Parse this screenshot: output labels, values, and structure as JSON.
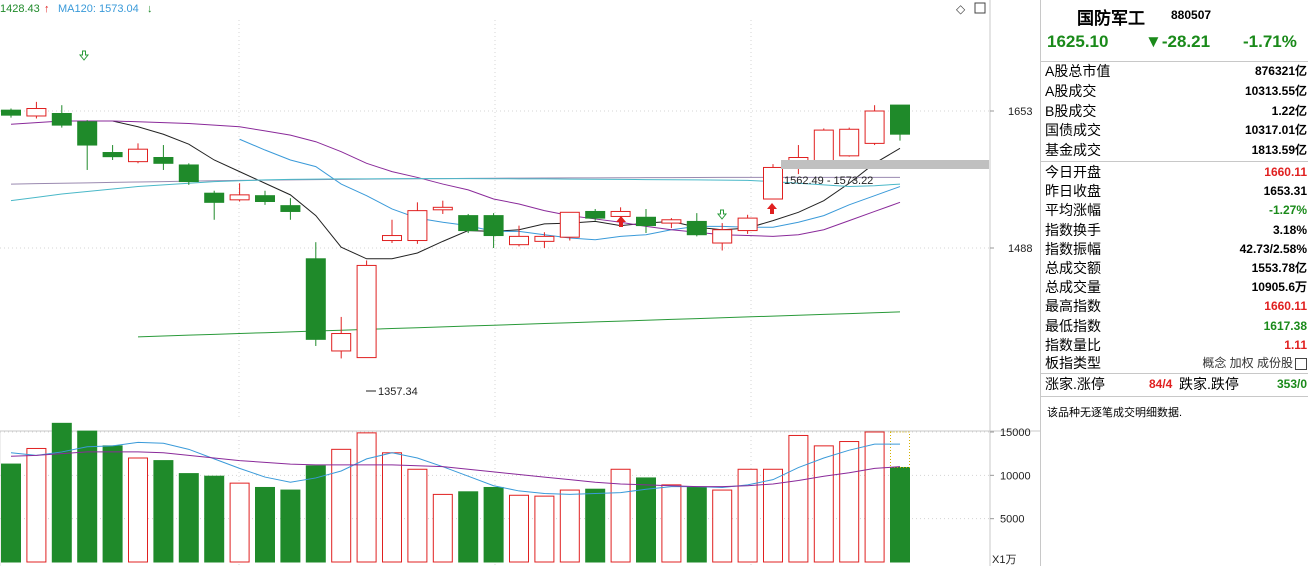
{
  "top_legend": {
    "ma_label_1": "1428.43",
    "ma_label_2": "MA120: 1573.04",
    "up_arrow_color": "#e02020",
    "ma2_color": "#3a9ad9"
  },
  "toolbar": {
    "diamond_icon": "diamond-icon",
    "window_icon": "window-icon"
  },
  "annotations": {
    "low_label": "1357.34",
    "gap_label": "1562.49 - 1573.22"
  },
  "volume_unit": "X1万",
  "header": {
    "name": "国防军工",
    "code": "880507",
    "price": "1625.10",
    "change": "▼-28.21",
    "pct": "-1.71%"
  },
  "stats": [
    {
      "key": "A股总市值",
      "value": "876321亿",
      "color": "blk"
    },
    {
      "key": "A股成交",
      "value": "10313.55亿",
      "color": "blk"
    },
    {
      "key": "B股成交",
      "value": "1.22亿",
      "color": "blk"
    },
    {
      "key": "国债成交",
      "value": "10317.01亿",
      "color": "blk"
    },
    {
      "key": "基金成交",
      "value": "1813.59亿",
      "color": "blk"
    },
    {
      "key": "今日开盘",
      "value": "1660.11",
      "color": "red"
    },
    {
      "key": "昨日收盘",
      "value": "1653.31",
      "color": "blk"
    },
    {
      "key": "平均涨幅",
      "value": "-1.27%",
      "color": "green"
    },
    {
      "key": "指数换手",
      "value": "3.18%",
      "color": "blk"
    },
    {
      "key": "指数振幅",
      "value": "42.73/2.58%",
      "color": "blk"
    },
    {
      "key": "总成交额",
      "value": "1553.78亿",
      "color": "blk"
    },
    {
      "key": "总成交量",
      "value": "10905.6万",
      "color": "blk"
    },
    {
      "key": "最高指数",
      "value": "1660.11",
      "color": "red"
    },
    {
      "key": "最低指数",
      "value": "1617.38",
      "color": "green"
    },
    {
      "key": "指数量比",
      "value": "1.11",
      "color": "red"
    }
  ],
  "type_row": {
    "key": "板指类型",
    "options": "概念 加权 成份股",
    "icon": "list-icon"
  },
  "ratio_row": {
    "key1": "涨家.涨停",
    "val1": "84/4",
    "key2": "跌家.跌停",
    "val2": "353/0"
  },
  "note": "该品种无逐笔成交明细数据.",
  "chart_data": {
    "type": "candlestick",
    "price_ticks": [
      1653,
      1488
    ],
    "volume_ticks": [
      15000,
      10000,
      5000
    ],
    "colors": {
      "up": "#e02020",
      "down": "#1f8a2a"
    },
    "candles": [
      {
        "o": 1654,
        "c": 1648,
        "h": 1656,
        "l": 1645,
        "v": 11300
      },
      {
        "o": 1647,
        "c": 1656,
        "h": 1664,
        "l": 1644,
        "v": 13100
      },
      {
        "o": 1650,
        "c": 1636,
        "h": 1660,
        "l": 1633,
        "v": 16000
      },
      {
        "o": 1640,
        "c": 1612,
        "h": 1642,
        "l": 1582,
        "v": 15100
      },
      {
        "o": 1603,
        "c": 1598,
        "h": 1612,
        "l": 1594,
        "v": 13400
      },
      {
        "o": 1592,
        "c": 1607,
        "h": 1614,
        "l": 1590,
        "v": 12000
      },
      {
        "o": 1597,
        "c": 1590,
        "h": 1612,
        "l": 1582,
        "v": 11700
      },
      {
        "o": 1588,
        "c": 1568,
        "h": 1590,
        "l": 1564,
        "v": 10200
      },
      {
        "o": 1554,
        "c": 1543,
        "h": 1557,
        "l": 1522,
        "v": 9900
      },
      {
        "o": 1546,
        "c": 1552,
        "h": 1566,
        "l": 1544,
        "v": 9100
      },
      {
        "o": 1551,
        "c": 1544,
        "h": 1557,
        "l": 1540,
        "v": 8600
      },
      {
        "o": 1539,
        "c": 1532,
        "h": 1548,
        "l": 1522,
        "v": 8300
      },
      {
        "o": 1475,
        "c": 1378,
        "h": 1495,
        "l": 1370,
        "v": 11100
      },
      {
        "o": 1364,
        "c": 1385,
        "h": 1405,
        "l": 1355,
        "v": 13000
      },
      {
        "o": 1356,
        "c": 1467,
        "h": 1473,
        "l": 1357.34,
        "v": 14900
      },
      {
        "o": 1497,
        "c": 1503,
        "h": 1522,
        "l": 1494,
        "v": 12600
      },
      {
        "o": 1497,
        "c": 1533,
        "h": 1543,
        "l": 1493,
        "v": 10700
      },
      {
        "o": 1534,
        "c": 1537,
        "h": 1545,
        "l": 1529,
        "v": 7800
      },
      {
        "o": 1527,
        "c": 1509,
        "h": 1529,
        "l": 1506,
        "v": 8100
      },
      {
        "o": 1527,
        "c": 1503,
        "h": 1530,
        "l": 1488,
        "v": 8600
      },
      {
        "o": 1492,
        "c": 1502,
        "h": 1515,
        "l": 1490,
        "v": 7700
      },
      {
        "o": 1496,
        "c": 1502,
        "h": 1507,
        "l": 1488,
        "v": 7600
      },
      {
        "o": 1501,
        "c": 1531,
        "h": 1531,
        "l": 1497,
        "v": 8300
      },
      {
        "o": 1532,
        "c": 1524,
        "h": 1535,
        "l": 1521,
        "v": 8400
      },
      {
        "o": 1526,
        "c": 1532,
        "h": 1537,
        "l": 1521,
        "v": 10700
      },
      {
        "o": 1525,
        "c": 1515,
        "h": 1535,
        "l": 1506,
        "v": 9700
      },
      {
        "o": 1518,
        "c": 1522,
        "h": 1524,
        "l": 1512,
        "v": 8900
      },
      {
        "o": 1520,
        "c": 1504,
        "h": 1530,
        "l": 1502,
        "v": 8600
      },
      {
        "o": 1494,
        "c": 1510,
        "h": 1518,
        "l": 1485,
        "v": 8300
      },
      {
        "o": 1509,
        "c": 1524,
        "h": 1528,
        "l": 1505,
        "v": 10700
      },
      {
        "o": 1547,
        "c": 1585,
        "h": 1589,
        "l": 1547,
        "v": 10700
      },
      {
        "o": 1590,
        "c": 1597,
        "h": 1612,
        "l": 1577,
        "v": 14600
      },
      {
        "o": 1590,
        "c": 1630,
        "h": 1632,
        "l": 1587,
        "v": 13400
      },
      {
        "o": 1599,
        "c": 1631,
        "h": 1633,
        "l": 1598,
        "v": 13900
      },
      {
        "o": 1614,
        "c": 1653,
        "h": 1660,
        "l": 1612,
        "v": 15000
      },
      {
        "o": 1660.11,
        "c": 1625.1,
        "h": 1660.11,
        "l": 1617.38,
        "v": 10905.6
      }
    ],
    "ma_lines": [
      {
        "color": "#222222",
        "values": [
          null,
          null,
          null,
          null,
          1641,
          1634,
          1625,
          1613,
          1594,
          1580,
          1566,
          1552,
          1527,
          1489,
          1475,
          1475,
          1482,
          1496,
          1509,
          1508,
          1510,
          1517,
          1518,
          1520,
          1515,
          1518,
          1520,
          1513,
          1510,
          1512,
          1521,
          1531,
          1545,
          1566,
          1590,
          1608
        ]
      },
      {
        "color": "#3a9ad9",
        "values": [
          null,
          null,
          null,
          null,
          null,
          null,
          null,
          null,
          null,
          1619,
          1606,
          1594,
          1586,
          1565,
          1551,
          1535,
          1524,
          1519,
          1515,
          1508,
          1508,
          1504,
          1500,
          1498,
          1502,
          1504,
          1510,
          1514,
          1514,
          1513,
          1513,
          1519,
          1527,
          1540,
          1551,
          1562
        ]
      },
      {
        "color": "#8a2a9a",
        "values": [
          1637,
          1639,
          1641,
          1641,
          1641,
          1640,
          1639,
          1638,
          1636,
          1634,
          1629,
          1624,
          1616,
          1604,
          1590,
          1580,
          1573,
          1565,
          1558,
          1547,
          1541,
          1533,
          1527,
          1523,
          1519,
          1514,
          1510,
          1507,
          1504,
          1503,
          1502,
          1504,
          1510,
          1521,
          1532,
          1543
        ]
      },
      {
        "color": "#9a8ab0",
        "values": [
          1565,
          1565.5,
          1566,
          1566.5,
          1567,
          1567.5,
          1568,
          1568.5,
          1569,
          1569.4,
          1569.8,
          1570,
          1570.4,
          1570.7,
          1571,
          1571.2,
          1571.4,
          1571.6,
          1571.8,
          1572,
          1572.2,
          1572.3,
          1572.4,
          1572.5,
          1572.6,
          1572.7,
          1572.8,
          1572.9,
          1573,
          1573,
          1573,
          1573,
          1573.04,
          1573.04,
          1573.04,
          1573.04
        ]
      },
      {
        "color": "#4ab8c8",
        "values": [
          1545,
          1549,
          1553,
          1556,
          1559,
          1562,
          1564,
          1566,
          1568,
          1569,
          1570,
          1570.6,
          1571,
          1571.2,
          1571.3,
          1571.4,
          1571.5,
          1571.5,
          1571.5,
          1571.4,
          1571.3,
          1571.2,
          1571,
          1570.8,
          1570.6,
          1570.4,
          1570.2,
          1570,
          1569.8,
          1569.5,
          1568,
          1566,
          1564,
          1562,
          1563,
          1565
        ]
      },
      {
        "color": "#2a9a3a",
        "values": [
          null,
          null,
          null,
          null,
          null,
          1381,
          1382,
          1383,
          1384,
          1385,
          1386,
          1387,
          1388,
          1389,
          1390,
          1391,
          1392,
          1393,
          1394,
          1395,
          1396,
          1397,
          1398,
          1399,
          1400,
          1401,
          1402,
          1403,
          1404,
          1405,
          1406,
          1407,
          1408,
          1409,
          1410,
          1411
        ]
      }
    ],
    "vol_ma_lines": [
      {
        "color": "#3a9ad9",
        "values": [
          12600,
          12300,
          12700,
          13300,
          13400,
          13800,
          13700,
          13000,
          11900,
          10800,
          9800,
          9200,
          9700,
          10500,
          11900,
          12600,
          12000,
          11000,
          9900,
          8800,
          8200,
          7900,
          7800,
          7900,
          8000,
          8400,
          8700,
          8700,
          8600,
          8900,
          9500,
          10900,
          12000,
          12900,
          13600,
          13600
        ]
      },
      {
        "color": "#8a2a9a",
        "values": [
          12200,
          12300,
          12500,
          12700,
          12700,
          12700,
          12600,
          12300,
          12000,
          11700,
          11500,
          11300,
          11200,
          11200,
          11200,
          11200,
          11100,
          11000,
          10700,
          10400,
          10100,
          9800,
          9500,
          9200,
          9000,
          8900,
          8800,
          8700,
          8700,
          8800,
          9000,
          9400,
          9900,
          10300,
          10800,
          11000
        ]
      }
    ]
  }
}
